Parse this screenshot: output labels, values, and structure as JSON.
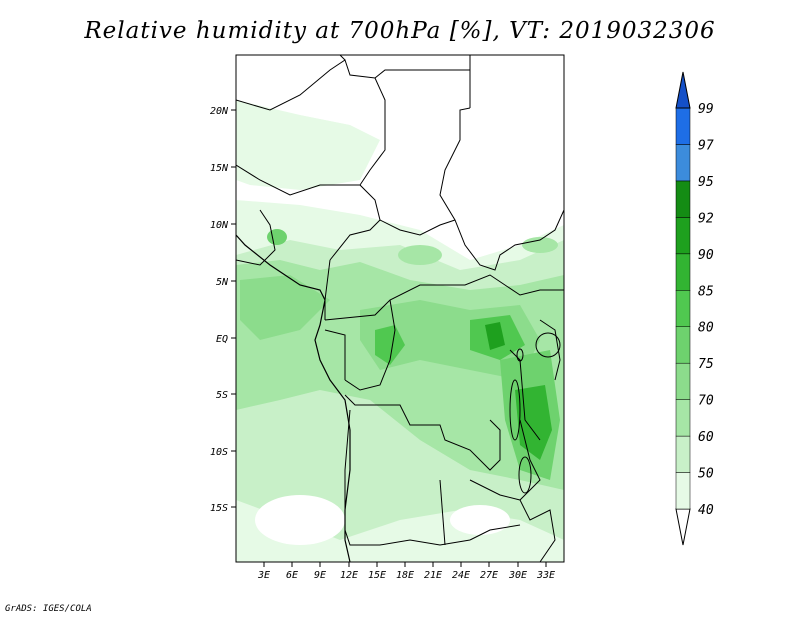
{
  "title": "Relative humidity at 700hPa [%], VT: 2019032306",
  "credit": "GrADS: IGES/COLA",
  "map": {
    "lat_labels": [
      "20N",
      "15N",
      "10N",
      "5N",
      "EQ",
      "5S",
      "10S",
      "15S"
    ],
    "lon_labels": [
      "3E",
      "6E",
      "9E",
      "12E",
      "15E",
      "18E",
      "21E",
      "24E",
      "27E",
      "30E",
      "33E"
    ]
  },
  "colorbar": {
    "labels": [
      "40",
      "50",
      "60",
      "70",
      "75",
      "80",
      "85",
      "90",
      "92",
      "95",
      "97",
      "99"
    ],
    "colors": [
      "#ffffff",
      "#e6fae6",
      "#c8f0c8",
      "#a6e6a6",
      "#8cdc8c",
      "#6ed26e",
      "#50c850",
      "#32b432",
      "#1ea01e",
      "#148c14",
      "#3c8cdc",
      "#1e6ee6",
      "#1450c8"
    ]
  }
}
